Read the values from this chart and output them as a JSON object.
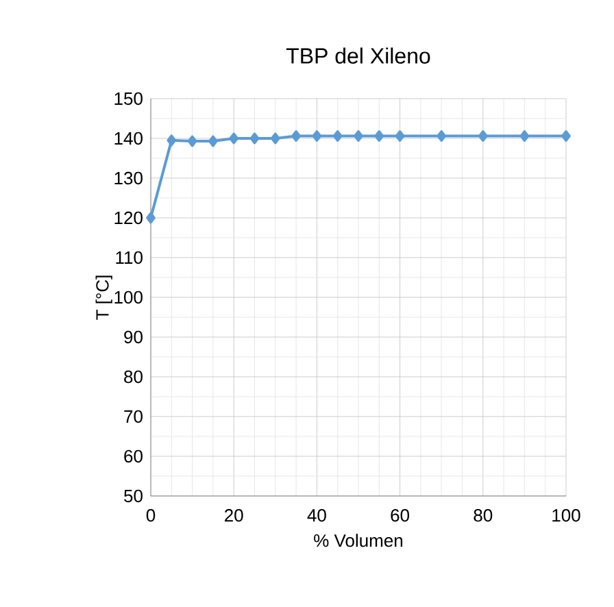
{
  "chart_data": {
    "type": "line",
    "title": "TBP del Xileno",
    "xlabel": "% Volumen",
    "ylabel": "T [°C]",
    "x": [
      0,
      5,
      10,
      15,
      20,
      25,
      30,
      35,
      40,
      45,
      50,
      55,
      60,
      70,
      80,
      90,
      100
    ],
    "series": [
      {
        "color": "#5b9bd5",
        "values": [
          120,
          139.5,
          139.3,
          139.3,
          140,
          140,
          140,
          140.6,
          140.6,
          140.6,
          140.6,
          140.6,
          140.6,
          140.6,
          140.6,
          140.6,
          140.6
        ]
      }
    ],
    "xlim": [
      0,
      100
    ],
    "ylim": [
      50,
      150
    ],
    "xticks": [
      0,
      20,
      40,
      60,
      80,
      100
    ],
    "yticks": [
      50,
      60,
      70,
      80,
      90,
      100,
      110,
      120,
      130,
      140,
      150
    ],
    "grid": true,
    "marker": "diamond",
    "line_style": "solid"
  }
}
